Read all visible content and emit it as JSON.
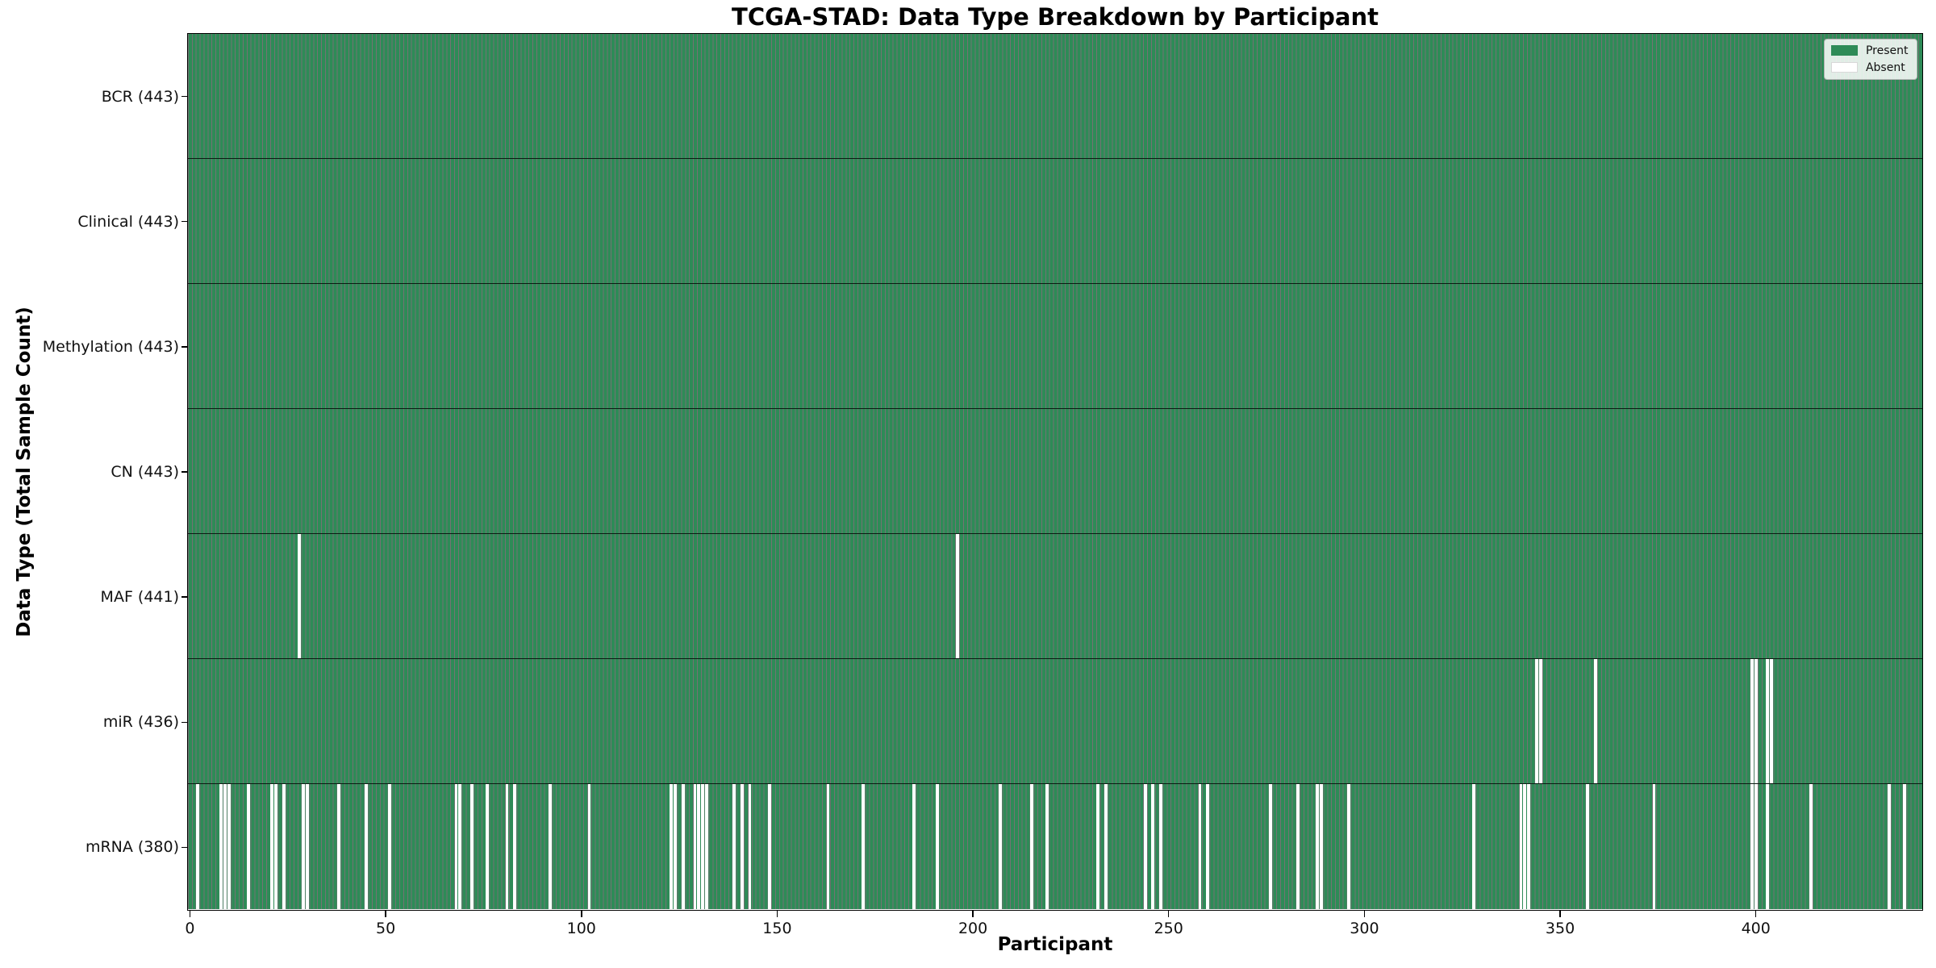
{
  "title": "TCGA-STAD: Data Type Breakdown by Participant",
  "axes": {
    "x_label": "Participant",
    "y_label": "Data Type (Total Sample Count)"
  },
  "legend": {
    "present_label": "Present",
    "absent_label": "Absent"
  },
  "colors": {
    "present": "#2E8B57",
    "absent": "#FFFFFF",
    "bar_edge": "rgba(0,0,0,0.55)",
    "row_separator": "rgba(0,0,0,0.8)",
    "spine": "#000000"
  },
  "chart_data": {
    "type": "heatmap",
    "title": "TCGA-STAD: Data Type Breakdown by Participant",
    "xlabel": "Participant",
    "ylabel": "Data Type (Total Sample Count)",
    "legend_entries": [
      "Present",
      "Absent"
    ],
    "legend_position": "upper right",
    "grid": false,
    "n_participants": 443,
    "xlim": [
      -0.5,
      442.5
    ],
    "x_ticks": [
      0,
      50,
      100,
      150,
      200,
      250,
      300,
      350,
      400
    ],
    "cell_values": "1 = present (green), 0 = absent (white); rows list absent participant indices, all others present",
    "rows": [
      {
        "name": "BCR",
        "label": "BCR (443)",
        "total": 443,
        "absent_participants": []
      },
      {
        "name": "Clinical",
        "label": "Clinical (443)",
        "total": 443,
        "absent_participants": []
      },
      {
        "name": "Methylation",
        "label": "Methylation (443)",
        "total": 443,
        "absent_participants": []
      },
      {
        "name": "CN",
        "label": "CN (443)",
        "total": 443,
        "absent_participants": []
      },
      {
        "name": "MAF",
        "label": "MAF (441)",
        "total": 441,
        "absent_participants": [
          28,
          196
        ]
      },
      {
        "name": "miR",
        "label": "miR (436)",
        "total": 436,
        "absent_participants": [
          344,
          345,
          359,
          399,
          400,
          403,
          404
        ]
      },
      {
        "name": "mRNA",
        "label": "mRNA (380)",
        "total": 380,
        "absent_participants": [
          2,
          8,
          9,
          10,
          15,
          21,
          22,
          24,
          29,
          30,
          38,
          45,
          51,
          68,
          69,
          72,
          76,
          81,
          83,
          92,
          102,
          123,
          124,
          126,
          129,
          130,
          131,
          132,
          139,
          141,
          143,
          148,
          163,
          172,
          185,
          191,
          207,
          215,
          219,
          232,
          234,
          244,
          246,
          248,
          258,
          260,
          276,
          283,
          288,
          289,
          296,
          328,
          340,
          341,
          342,
          357,
          374,
          399,
          400,
          403,
          414,
          434,
          438
        ]
      }
    ]
  }
}
